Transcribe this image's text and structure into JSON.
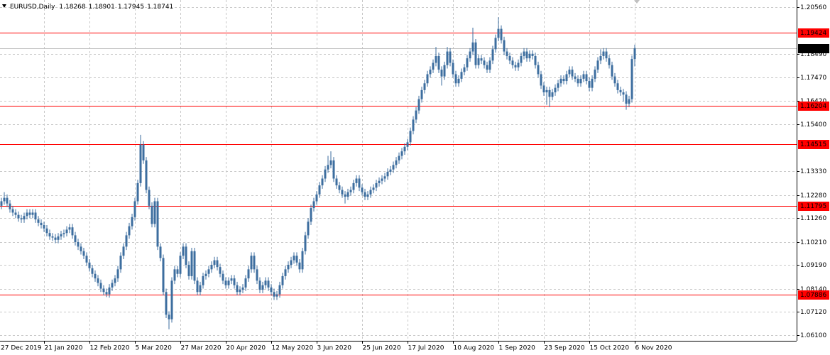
{
  "chart_data": {
    "type": "candlestick",
    "title": "EURUSD,Daily",
    "color": "#3d6e9f",
    "level_color": "#ff0000",
    "price_line_color": "#c0c0c0",
    "grid": true,
    "categories": [
      "27 Dec 2019",
      null,
      null,
      null,
      null,
      null,
      null,
      null,
      null,
      null,
      null,
      null,
      null,
      null,
      null,
      null,
      "21 Jan 2020",
      null,
      null,
      null,
      null,
      null,
      null,
      null,
      null,
      null,
      null,
      null,
      null,
      null,
      null,
      null,
      "12 Feb 2020",
      null,
      null,
      null,
      null,
      null,
      null,
      null,
      null,
      null,
      null,
      null,
      null,
      null,
      null,
      null,
      "5 Mar 2020",
      null,
      null,
      null,
      null,
      null,
      null,
      null,
      null,
      null,
      null,
      null,
      null,
      null,
      null,
      null,
      "27 Mar 2020",
      null,
      null,
      null,
      null,
      null,
      null,
      null,
      null,
      null,
      null,
      null,
      null,
      null,
      null,
      null,
      "20 Apr 2020",
      null,
      null,
      null,
      null,
      null,
      null,
      null,
      null,
      null,
      null,
      null,
      null,
      null,
      null,
      null,
      "12 May 2020",
      null,
      null,
      null,
      null,
      null,
      null,
      null,
      null,
      null,
      null,
      null,
      null,
      null,
      null,
      null,
      "3 Jun 2020",
      null,
      null,
      null,
      null,
      null,
      null,
      null,
      null,
      null,
      null,
      null,
      null,
      null,
      null,
      null,
      "25 Jun 2020",
      null,
      null,
      null,
      null,
      null,
      null,
      null,
      null,
      null,
      null,
      null,
      null,
      null,
      null,
      null,
      "17 Jul 2020",
      null,
      null,
      null,
      null,
      null,
      null,
      null,
      null,
      null,
      null,
      null,
      null,
      null,
      null,
      null,
      "10 Aug 2020",
      null,
      null,
      null,
      null,
      null,
      null,
      null,
      null,
      null,
      null,
      null,
      null,
      null,
      null,
      null,
      "1 Sep 2020",
      null,
      null,
      null,
      null,
      null,
      null,
      null,
      null,
      null,
      null,
      null,
      null,
      null,
      null,
      null,
      "23 Sep 2020",
      null,
      null,
      null,
      null,
      null,
      null,
      null,
      null,
      null,
      null,
      null,
      null,
      null,
      null,
      null,
      "15 Oct 2020",
      null,
      null,
      null,
      null,
      null,
      null,
      null,
      null,
      null,
      null,
      null,
      null,
      null,
      null,
      null,
      "6 Nov 2020"
    ],
    "open": [
      1.1165,
      1.118,
      1.12,
      1.1215,
      1.119,
      1.1165,
      1.115,
      1.114,
      1.1125,
      1.112,
      1.1135,
      1.115,
      1.114,
      1.115,
      1.112,
      1.1105,
      1.1095,
      1.108,
      1.106,
      1.1045,
      1.104,
      1.103,
      1.1045,
      1.1055,
      1.106,
      1.1075,
      1.1085,
      1.105,
      1.102,
      1.1,
      1.098,
      1.096,
      1.093,
      1.0905,
      1.088,
      1.086,
      1.084,
      1.0815,
      1.08,
      1.079,
      1.082,
      1.084,
      1.086,
      1.09,
      1.096,
      1.1,
      1.105,
      1.109,
      1.113,
      1.12,
      1.128,
      1.145,
      1.138,
      1.125,
      1.118,
      1.11,
      1.12,
      1.1,
      1.095,
      1.08,
      1.07,
      1.068,
      1.085,
      1.09,
      1.088,
      1.096,
      1.1,
      1.092,
      1.087,
      1.098,
      1.085,
      1.08,
      1.083,
      1.087,
      1.088,
      1.09,
      1.092,
      1.094,
      1.091,
      1.088,
      1.085,
      1.083,
      1.085,
      1.086,
      1.083,
      1.08,
      1.081,
      1.082,
      1.086,
      1.09,
      1.096,
      1.09,
      1.085,
      1.081,
      1.083,
      1.085,
      1.082,
      1.08,
      1.078,
      1.079,
      1.083,
      1.087,
      1.09,
      1.092,
      1.094,
      1.096,
      1.093,
      1.09,
      1.098,
      1.105,
      1.111,
      1.117,
      1.12,
      1.123,
      1.127,
      1.13,
      1.134,
      1.136,
      1.138,
      1.13,
      1.127,
      1.125,
      1.123,
      1.122,
      1.124,
      1.125,
      1.128,
      1.13,
      1.126,
      1.124,
      1.122,
      1.123,
      1.125,
      1.126,
      1.128,
      1.129,
      1.13,
      1.131,
      1.133,
      1.134,
      1.136,
      1.138,
      1.14,
      1.142,
      1.144,
      1.146,
      1.151,
      1.156,
      1.16,
      1.165,
      1.169,
      1.172,
      1.176,
      1.178,
      1.181,
      1.184,
      1.178,
      1.175,
      1.18,
      1.186,
      1.181,
      1.176,
      1.172,
      1.174,
      1.177,
      1.179,
      1.183,
      1.186,
      1.19,
      1.18,
      1.183,
      1.182,
      1.18,
      1.178,
      1.182,
      1.187,
      1.192,
      1.196,
      1.191,
      1.186,
      1.184,
      1.182,
      1.18,
      1.179,
      1.181,
      1.184,
      1.186,
      1.183,
      1.185,
      1.184,
      1.18,
      1.176,
      1.171,
      1.168,
      1.169,
      1.166,
      1.168,
      1.17,
      1.172,
      1.174,
      1.173,
      1.176,
      1.178,
      1.175,
      1.174,
      1.172,
      1.174,
      1.176,
      1.173,
      1.17,
      1.174,
      1.178,
      1.182,
      1.184,
      1.186,
      1.183,
      1.18,
      1.175,
      1.172,
      1.169,
      1.168,
      1.167,
      1.163,
      1.165,
      1.18268
    ],
    "high": [
      1.1215,
      1.1215,
      1.124,
      1.123,
      1.1205,
      1.118,
      1.1165,
      1.1155,
      1.114,
      1.115,
      1.1165,
      1.1165,
      1.1165,
      1.1165,
      1.1135,
      1.112,
      1.111,
      1.1095,
      1.1075,
      1.106,
      1.1055,
      1.106,
      1.107,
      1.1075,
      1.109,
      1.11,
      1.11,
      1.1065,
      1.1035,
      1.1015,
      1.0995,
      1.0975,
      1.0945,
      1.092,
      1.0895,
      1.0875,
      1.0855,
      1.083,
      1.0815,
      1.0835,
      1.0855,
      1.0875,
      1.0915,
      1.0975,
      1.1015,
      1.1065,
      1.1105,
      1.1145,
      1.1215,
      1.1295,
      1.1493,
      1.1465,
      1.1395,
      1.1265,
      1.1195,
      1.1215,
      1.1215,
      1.1015,
      1.0965,
      1.0815,
      1.0715,
      1.0865,
      1.0915,
      1.0915,
      1.0975,
      1.1015,
      1.1015,
      1.0935,
      1.0995,
      1.0995,
      1.0865,
      1.0845,
      1.0885,
      1.0895,
      1.0915,
      1.0935,
      1.0955,
      1.0955,
      1.0925,
      1.0895,
      1.0865,
      1.0865,
      1.0875,
      1.0875,
      1.0845,
      1.0825,
      1.0835,
      1.0875,
      1.0915,
      1.0975,
      1.0975,
      1.0915,
      1.0865,
      1.0845,
      1.0865,
      1.0865,
      1.0835,
      1.0815,
      1.0805,
      1.0845,
      1.0885,
      1.0915,
      1.0935,
      1.0955,
      1.0975,
      1.0975,
      1.0945,
      1.0995,
      1.1065,
      1.1125,
      1.1185,
      1.1215,
      1.1245,
      1.1285,
      1.1315,
      1.1355,
      1.14,
      1.142,
      1.1395,
      1.1315,
      1.1285,
      1.1265,
      1.1245,
      1.1255,
      1.1265,
      1.1295,
      1.1315,
      1.1315,
      1.1275,
      1.1255,
      1.1245,
      1.1265,
      1.1275,
      1.1295,
      1.1305,
      1.1315,
      1.1325,
      1.1345,
      1.1355,
      1.1375,
      1.1395,
      1.1415,
      1.1435,
      1.1455,
      1.1475,
      1.1525,
      1.1575,
      1.1615,
      1.1665,
      1.1705,
      1.1735,
      1.1775,
      1.1795,
      1.1825,
      1.188,
      1.1855,
      1.1795,
      1.1815,
      1.188,
      1.1875,
      1.1825,
      1.1775,
      1.1755,
      1.1785,
      1.1805,
      1.1845,
      1.1875,
      1.1965,
      1.1915,
      1.1845,
      1.1845,
      1.1835,
      1.1815,
      1.1835,
      1.1885,
      1.1935,
      1.2011,
      1.1975,
      1.1925,
      1.1875,
      1.1855,
      1.1835,
      1.1815,
      1.1825,
      1.1855,
      1.1875,
      1.1875,
      1.1865,
      1.1865,
      1.1855,
      1.1815,
      1.1775,
      1.1725,
      1.1705,
      1.1705,
      1.1695,
      1.1715,
      1.1735,
      1.1755,
      1.1755,
      1.1775,
      1.1795,
      1.1795,
      1.1765,
      1.1755,
      1.1755,
      1.1775,
      1.1775,
      1.1745,
      1.1755,
      1.1795,
      1.1835,
      1.187,
      1.1875,
      1.1875,
      1.1845,
      1.1815,
      1.1765,
      1.1735,
      1.1705,
      1.1695,
      1.1685,
      1.1665,
      1.1842,
      1.18901
    ],
    "low": [
      1.115,
      1.1165,
      1.1185,
      1.1175,
      1.115,
      1.1135,
      1.1125,
      1.111,
      1.1105,
      1.1105,
      1.112,
      1.1125,
      1.1125,
      1.1105,
      1.109,
      1.108,
      1.1065,
      1.1045,
      1.103,
      1.1025,
      1.1015,
      1.1015,
      1.103,
      1.104,
      1.1045,
      1.106,
      1.1035,
      1.1005,
      1.0985,
      1.0965,
      1.0945,
      1.0915,
      1.089,
      1.0865,
      1.0845,
      1.0825,
      1.08,
      1.0785,
      1.0778,
      1.0775,
      1.0805,
      1.0825,
      1.0845,
      1.0885,
      1.0945,
      1.0985,
      1.1035,
      1.1075,
      1.1115,
      1.1185,
      1.1265,
      1.1365,
      1.1235,
      1.1165,
      1.1085,
      1.1085,
      1.0985,
      1.0935,
      1.0785,
      1.0685,
      1.0636,
      1.0665,
      1.0835,
      1.0865,
      1.0865,
      1.0945,
      1.0905,
      1.0855,
      1.0855,
      1.0835,
      1.0785,
      1.0785,
      1.0815,
      1.0855,
      1.0865,
      1.0885,
      1.0905,
      1.0895,
      1.0865,
      1.0835,
      1.0815,
      1.0815,
      1.0835,
      1.0815,
      1.0785,
      1.0785,
      1.0795,
      1.0805,
      1.0845,
      1.0885,
      1.0885,
      1.0835,
      1.0795,
      1.0795,
      1.0815,
      1.0805,
      1.0785,
      1.0765,
      1.0765,
      1.0775,
      1.0815,
      1.0855,
      1.0885,
      1.0905,
      1.0925,
      1.0915,
      1.0885,
      1.0885,
      1.0965,
      1.1035,
      1.1095,
      1.1155,
      1.1185,
      1.1215,
      1.1255,
      1.1285,
      1.1325,
      1.1345,
      1.1285,
      1.1255,
      1.1235,
      1.1215,
      1.119,
      1.1205,
      1.1225,
      1.1235,
      1.1265,
      1.1245,
      1.1225,
      1.1205,
      1.1205,
      1.1215,
      1.1235,
      1.1245,
      1.1265,
      1.1275,
      1.1285,
      1.1295,
      1.1315,
      1.1325,
      1.1345,
      1.1365,
      1.1385,
      1.1405,
      1.1425,
      1.1445,
      1.1495,
      1.1545,
      1.1585,
      1.1635,
      1.1675,
      1.1705,
      1.1745,
      1.1765,
      1.1795,
      1.1765,
      1.171,
      1.1735,
      1.1785,
      1.1795,
      1.1745,
      1.1705,
      1.1705,
      1.1725,
      1.1755,
      1.1775,
      1.1815,
      1.1845,
      1.1785,
      1.1785,
      1.1805,
      1.1785,
      1.1765,
      1.1765,
      1.1805,
      1.1855,
      1.1905,
      1.1895,
      1.1845,
      1.1825,
      1.1805,
      1.1785,
      1.1775,
      1.1775,
      1.1795,
      1.1825,
      1.1815,
      1.1815,
      1.1825,
      1.1785,
      1.1745,
      1.1695,
      1.1665,
      1.1625,
      1.1615,
      1.1645,
      1.1665,
      1.1685,
      1.1705,
      1.1715,
      1.1715,
      1.1745,
      1.1735,
      1.1725,
      1.1705,
      1.1705,
      1.1725,
      1.1715,
      1.1685,
      1.1685,
      1.1725,
      1.1765,
      1.1805,
      1.1825,
      1.1815,
      1.1785,
      1.1735,
      1.1705,
      1.1675,
      1.1665,
      1.164,
      1.1603,
      1.1615,
      1.1635,
      1.17945
    ],
    "close": [
      1.118,
      1.12,
      1.1215,
      1.119,
      1.1165,
      1.115,
      1.114,
      1.1125,
      1.112,
      1.1135,
      1.115,
      1.114,
      1.115,
      1.112,
      1.1105,
      1.1095,
      1.108,
      1.106,
      1.1045,
      1.104,
      1.103,
      1.1045,
      1.1055,
      1.106,
      1.1075,
      1.1085,
      1.105,
      1.102,
      1.1,
      1.098,
      1.096,
      1.093,
      1.0905,
      1.088,
      1.086,
      1.084,
      1.0815,
      1.08,
      1.079,
      1.082,
      1.084,
      1.086,
      1.09,
      1.096,
      1.1,
      1.105,
      1.109,
      1.113,
      1.12,
      1.128,
      1.145,
      1.138,
      1.125,
      1.118,
      1.11,
      1.12,
      1.1,
      1.095,
      1.08,
      1.07,
      1.068,
      1.085,
      1.09,
      1.088,
      1.096,
      1.1,
      1.092,
      1.087,
      1.098,
      1.085,
      1.08,
      1.083,
      1.087,
      1.088,
      1.09,
      1.092,
      1.094,
      1.091,
      1.088,
      1.085,
      1.083,
      1.085,
      1.086,
      1.083,
      1.08,
      1.081,
      1.082,
      1.086,
      1.09,
      1.096,
      1.09,
      1.085,
      1.081,
      1.083,
      1.085,
      1.082,
      1.08,
      1.078,
      1.079,
      1.083,
      1.087,
      1.09,
      1.092,
      1.094,
      1.096,
      1.093,
      1.09,
      1.098,
      1.105,
      1.111,
      1.117,
      1.12,
      1.123,
      1.127,
      1.13,
      1.134,
      1.136,
      1.138,
      1.13,
      1.127,
      1.125,
      1.123,
      1.122,
      1.124,
      1.125,
      1.128,
      1.13,
      1.126,
      1.124,
      1.122,
      1.123,
      1.125,
      1.126,
      1.128,
      1.129,
      1.13,
      1.131,
      1.133,
      1.134,
      1.136,
      1.138,
      1.14,
      1.142,
      1.144,
      1.146,
      1.151,
      1.156,
      1.16,
      1.165,
      1.169,
      1.172,
      1.176,
      1.178,
      1.181,
      1.184,
      1.178,
      1.175,
      1.18,
      1.186,
      1.181,
      1.176,
      1.172,
      1.174,
      1.177,
      1.179,
      1.183,
      1.186,
      1.19,
      1.18,
      1.183,
      1.182,
      1.18,
      1.178,
      1.182,
      1.187,
      1.192,
      1.196,
      1.191,
      1.186,
      1.184,
      1.182,
      1.18,
      1.179,
      1.181,
      1.184,
      1.186,
      1.183,
      1.185,
      1.184,
      1.18,
      1.176,
      1.171,
      1.168,
      1.169,
      1.166,
      1.168,
      1.17,
      1.172,
      1.174,
      1.173,
      1.176,
      1.178,
      1.175,
      1.174,
      1.172,
      1.174,
      1.176,
      1.173,
      1.17,
      1.174,
      1.178,
      1.182,
      1.184,
      1.186,
      1.183,
      1.18,
      1.175,
      1.172,
      1.169,
      1.168,
      1.167,
      1.163,
      1.165,
      1.1827,
      1.18741
    ],
    "ylim": [
      1.0585,
      1.2087
    ],
    "yticks": [
      {
        "value": 1.2056,
        "label": "1.20560"
      },
      {
        "value": 1.1849,
        "label": "1.18490"
      },
      {
        "value": 1.1747,
        "label": "1.17470"
      },
      {
        "value": 1.1642,
        "label": "1.16420"
      },
      {
        "value": 1.154,
        "label": "1.15400"
      },
      {
        "value": 1.1333,
        "label": "1.13330"
      },
      {
        "value": 1.1228,
        "label": "1.12280"
      },
      {
        "value": 1.1126,
        "label": "1.11260"
      },
      {
        "value": 1.1021,
        "label": "1.10210"
      },
      {
        "value": 1.0919,
        "label": "1.09190"
      },
      {
        "value": 1.0814,
        "label": "1.08140"
      },
      {
        "value": 1.0712,
        "label": "1.07120"
      },
      {
        "value": 1.061,
        "label": "1.06100"
      }
    ],
    "levels": [
      1.19424,
      1.16204,
      1.14515,
      1.11795,
      1.07886
    ]
  }
}
